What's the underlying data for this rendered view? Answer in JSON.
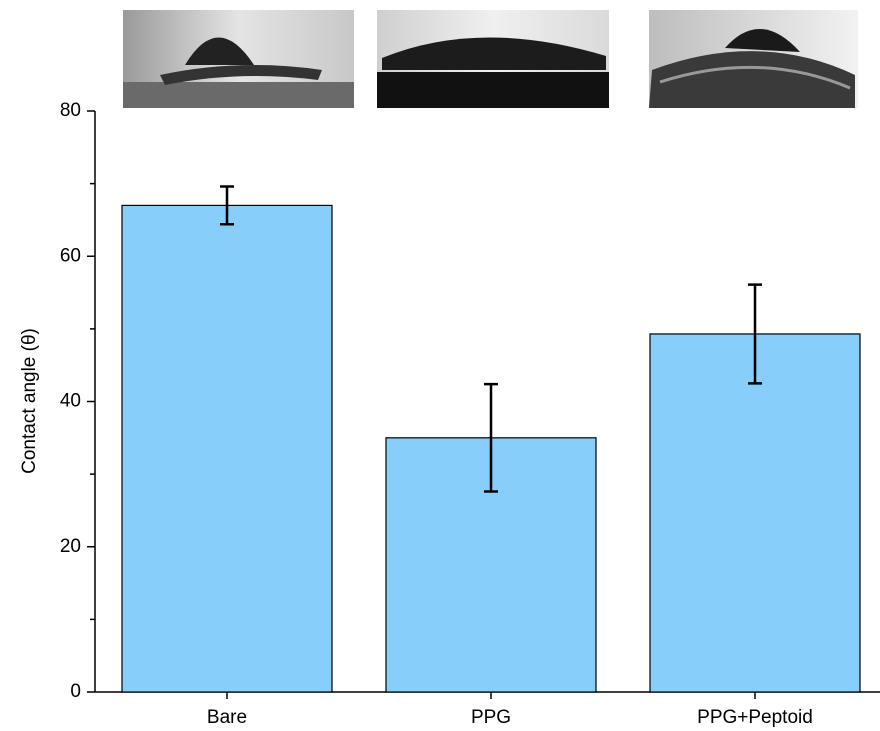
{
  "chart_data": {
    "type": "bar",
    "y_label": "Contact angle (θ)",
    "categories": [
      "Bare",
      "PPG",
      "PPG+Peptoid"
    ],
    "values": [
      67,
      35,
      49.3
    ],
    "errors": [
      2.6,
      7.4,
      6.8
    ],
    "color": "#87cefa",
    "ylim": [
      0,
      80
    ],
    "yticks": [
      0,
      20,
      40,
      60,
      80
    ],
    "minor_yticks": [
      10,
      30,
      50,
      70
    ]
  }
}
